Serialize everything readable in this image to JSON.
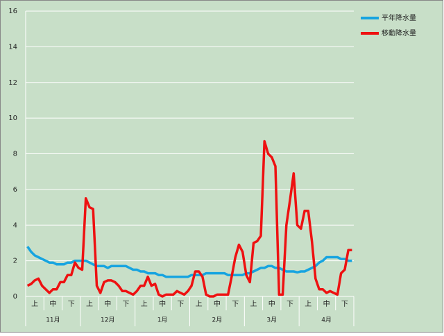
{
  "chart_data": {
    "type": "line",
    "categories": [
      null,
      null,
      "上",
      null,
      null,
      null,
      null,
      "中",
      null,
      null,
      null,
      null,
      "下",
      null,
      null,
      null,
      null,
      "上",
      null,
      null,
      null,
      null,
      "中",
      null,
      null,
      null,
      null,
      "下",
      null,
      null,
      null,
      null,
      "上",
      null,
      null,
      null,
      null,
      "中",
      null,
      null,
      null,
      null,
      "下",
      null,
      null,
      null,
      null,
      "上",
      null,
      null,
      null,
      null,
      "中",
      null,
      null,
      null,
      null,
      "下",
      null,
      null,
      null,
      null,
      "上",
      null,
      null,
      null,
      null,
      "中",
      null,
      null,
      null,
      null,
      "下",
      null,
      null,
      null,
      null,
      "上",
      null,
      null,
      null,
      null,
      "中",
      null,
      null,
      null,
      null,
      "下",
      null,
      null
    ],
    "months": [
      "11月",
      "12月",
      "1月",
      "2月",
      "3月",
      "4月"
    ],
    "series": [
      {
        "name": "平年降水量",
        "color": "#16a4e0",
        "values": [
          2.8,
          2.5,
          2.3,
          2.2,
          2.1,
          2.0,
          1.9,
          1.9,
          1.8,
          1.8,
          1.8,
          1.9,
          1.9,
          2.0,
          2.0,
          2.0,
          2.0,
          1.9,
          1.8,
          1.7,
          1.7,
          1.7,
          1.6,
          1.7,
          1.7,
          1.7,
          1.7,
          1.7,
          1.6,
          1.5,
          1.5,
          1.4,
          1.4,
          1.3,
          1.3,
          1.3,
          1.2,
          1.2,
          1.1,
          1.1,
          1.1,
          1.1,
          1.1,
          1.1,
          1.1,
          1.2,
          1.2,
          1.2,
          1.2,
          1.3,
          1.3,
          1.3,
          1.3,
          1.3,
          1.3,
          1.2,
          1.2,
          1.2,
          1.2,
          1.2,
          1.3,
          1.3,
          1.4,
          1.5,
          1.6,
          1.6,
          1.7,
          1.7,
          1.6,
          1.6,
          1.5,
          1.4,
          1.4,
          1.4,
          1.35,
          1.4,
          1.4,
          1.5,
          1.6,
          1.7,
          1.9,
          2.0,
          2.2,
          2.2,
          2.2,
          2.2,
          2.1,
          2.1,
          2.0,
          2.0
        ]
      },
      {
        "name": "移動降水量",
        "color": "#ee1111",
        "values": [
          0.6,
          0.7,
          0.9,
          1.0,
          0.6,
          0.4,
          0.2,
          0.4,
          0.4,
          0.8,
          0.8,
          1.2,
          1.2,
          1.9,
          1.6,
          1.5,
          5.5,
          5.0,
          4.9,
          0.6,
          0.2,
          0.8,
          0.9,
          0.9,
          0.8,
          0.6,
          0.3,
          0.3,
          0.2,
          0.1,
          0.3,
          0.6,
          0.6,
          1.1,
          0.6,
          0.7,
          0.1,
          0.0,
          0.1,
          0.1,
          0.1,
          0.3,
          0.2,
          0.1,
          0.3,
          0.6,
          1.4,
          1.4,
          1.1,
          0.1,
          0.0,
          0.0,
          0.1,
          0.1,
          0.1,
          0.1,
          1.1,
          2.2,
          2.9,
          2.5,
          1.2,
          0.8,
          3.0,
          3.1,
          3.4,
          8.7,
          8.0,
          7.8,
          7.3,
          0.1,
          0.1,
          4.0,
          5.4,
          6.9,
          4.0,
          3.8,
          4.8,
          4.8,
          3.1,
          1.0,
          0.4,
          0.4,
          0.2,
          0.3,
          0.2,
          0.1,
          1.3,
          1.5,
          2.6,
          2.6
        ]
      }
    ],
    "ylim": [
      0,
      16
    ],
    "yticks": [
      0,
      2,
      4,
      6,
      8,
      10,
      12,
      14,
      16
    ],
    "grid": true
  }
}
